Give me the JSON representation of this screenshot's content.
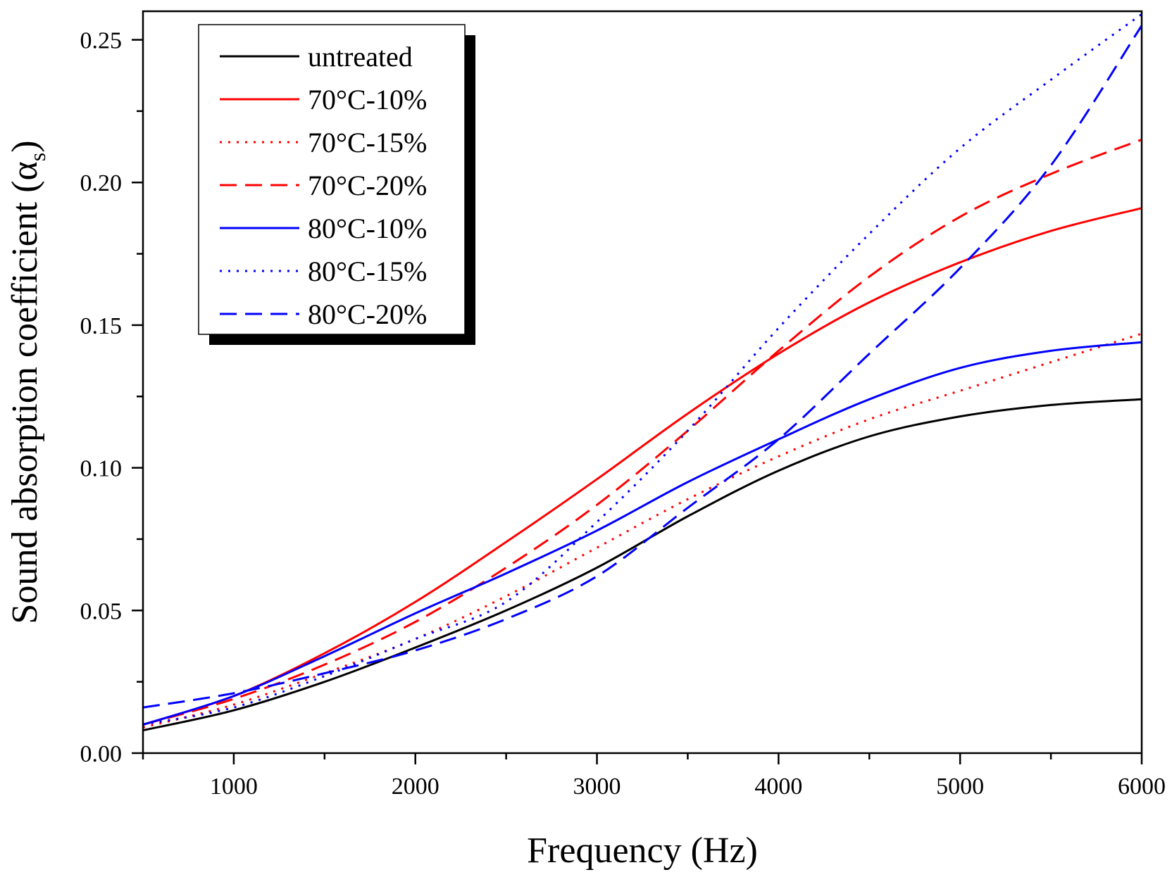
{
  "chart_data": {
    "type": "line",
    "title": "",
    "xlabel": "Frequency (Hz)",
    "ylabel": "Sound absorption coefficient (α",
    "ylabel_subscript": "s",
    "ylabel_close": ")",
    "xlim": [
      500,
      6000
    ],
    "ylim": [
      0,
      0.26
    ],
    "x_ticks": [
      1000,
      2000,
      3000,
      4000,
      5000,
      6000
    ],
    "x_tick_labels": [
      "1000",
      "2000",
      "3000",
      "4000",
      "5000",
      "6000"
    ],
    "x_minor_ticks": [
      500,
      1500,
      2500,
      3500,
      4500,
      5500
    ],
    "y_ticks": [
      0,
      0.05,
      0.1,
      0.15,
      0.2,
      0.25
    ],
    "y_tick_labels": [
      "0.00",
      "0.05",
      "0.10",
      "0.15",
      "0.20",
      "0.25"
    ],
    "y_minor_ticks": [
      0.025,
      0.075,
      0.125,
      0.175,
      0.225
    ],
    "grid": false,
    "legend_position": "top-left",
    "x": [
      500,
      1000,
      1500,
      2000,
      2500,
      3000,
      3500,
      4000,
      4500,
      5000,
      5500,
      6000
    ],
    "series": [
      {
        "name": "untreated",
        "color": "#000000",
        "style": "solid",
        "values": [
          0.008,
          0.015,
          0.025,
          0.037,
          0.05,
          0.065,
          0.083,
          0.099,
          0.111,
          0.118,
          0.122,
          0.124
        ]
      },
      {
        "name": "70°C-10%",
        "color": "#ff0000",
        "style": "solid",
        "values": [
          0.01,
          0.02,
          0.035,
          0.053,
          0.074,
          0.096,
          0.119,
          0.14,
          0.158,
          0.172,
          0.183,
          0.191
        ]
      },
      {
        "name": "70°C-15%",
        "color": "#ff0000",
        "style": "dotted",
        "values": [
          0.009,
          0.017,
          0.028,
          0.04,
          0.055,
          0.072,
          0.089,
          0.104,
          0.117,
          0.127,
          0.137,
          0.147
        ]
      },
      {
        "name": "70°C-20%",
        "color": "#ff0000",
        "style": "dashed",
        "values": [
          0.01,
          0.019,
          0.031,
          0.046,
          0.065,
          0.087,
          0.113,
          0.141,
          0.167,
          0.188,
          0.203,
          0.215
        ]
      },
      {
        "name": "80°C-10%",
        "color": "#0000ff",
        "style": "solid",
        "values": [
          0.01,
          0.02,
          0.034,
          0.049,
          0.063,
          0.078,
          0.095,
          0.11,
          0.124,
          0.135,
          0.141,
          0.144
        ]
      },
      {
        "name": "80°C-15%",
        "color": "#0000ff",
        "style": "dotted",
        "values": [
          0.01,
          0.016,
          0.027,
          0.04,
          0.053,
          0.081,
          0.113,
          0.149,
          0.182,
          0.212,
          0.236,
          0.259
        ]
      },
      {
        "name": "80°C-20%",
        "color": "#0000ff",
        "style": "dashed",
        "values": [
          0.016,
          0.021,
          0.028,
          0.036,
          0.047,
          0.062,
          0.086,
          0.11,
          0.14,
          0.17,
          0.206,
          0.255
        ]
      }
    ]
  }
}
